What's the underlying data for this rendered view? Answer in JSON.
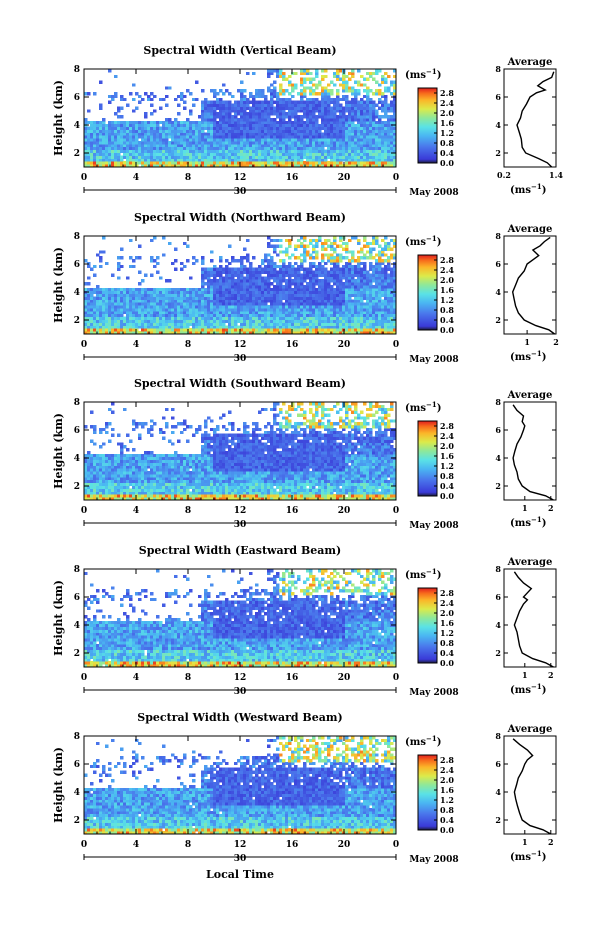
{
  "chart_data": {
    "type": "heatmap",
    "xlabel": "Local Time",
    "x_ticks": [
      "0",
      "4",
      "8",
      "12",
      "16",
      "20",
      "0"
    ],
    "xlim": [
      0,
      24
    ],
    "date_day": "30",
    "date_month": "May 2008",
    "ylabel": "Height (km)",
    "y_ticks": [
      "2",
      "4",
      "6",
      "8"
    ],
    "ylim": [
      1,
      8
    ],
    "colorbar_unit_prefix": "(ms",
    "colorbar_unit_sup": "−1",
    "colorbar_unit_suffix": ")",
    "colorbar_ticks": [
      "0.0",
      "0.4",
      "0.8",
      "1.2",
      "1.6",
      "2.0",
      "2.4",
      "2.8"
    ],
    "colorbar_range": [
      0,
      3.0
    ],
    "avg_title": "Average",
    "avg_ylim": [
      1,
      8
    ],
    "panels": [
      {
        "title": "Spectral Width (Vertical Beam)",
        "beam": "vertical",
        "avg_x_ticks": [
          "0.2",
          "1.4"
        ],
        "avg_xlim": [
          0.2,
          1.4
        ],
        "avg_profile": [
          [
            1.3,
            1.0
          ],
          [
            1.2,
            1.3
          ],
          [
            1.0,
            1.6
          ],
          [
            0.7,
            2.0
          ],
          [
            0.62,
            2.4
          ],
          [
            0.6,
            3.0
          ],
          [
            0.55,
            3.5
          ],
          [
            0.5,
            4.0
          ],
          [
            0.58,
            4.5
          ],
          [
            0.62,
            5.0
          ],
          [
            0.72,
            5.5
          ],
          [
            0.8,
            6.0
          ],
          [
            0.95,
            6.3
          ],
          [
            1.15,
            6.5
          ],
          [
            0.98,
            6.8
          ],
          [
            1.1,
            7.1
          ],
          [
            1.3,
            7.4
          ],
          [
            1.35,
            7.8
          ]
        ]
      },
      {
        "title": "Spectral Width (Northward Beam)",
        "beam": "northward",
        "avg_x_ticks": [
          "1",
          "2"
        ],
        "avg_xlim": [
          0.2,
          2.0
        ],
        "avg_profile": [
          [
            1.95,
            1.0
          ],
          [
            1.75,
            1.3
          ],
          [
            1.3,
            1.6
          ],
          [
            0.9,
            2.0
          ],
          [
            0.7,
            2.5
          ],
          [
            0.6,
            3.0
          ],
          [
            0.55,
            3.5
          ],
          [
            0.5,
            4.0
          ],
          [
            0.6,
            4.5
          ],
          [
            0.7,
            5.0
          ],
          [
            0.9,
            5.5
          ],
          [
            1.0,
            6.0
          ],
          [
            1.2,
            6.3
          ],
          [
            1.4,
            6.6
          ],
          [
            1.2,
            7.0
          ],
          [
            1.45,
            7.3
          ],
          [
            1.6,
            7.6
          ],
          [
            1.8,
            7.9
          ]
        ]
      },
      {
        "title": "Spectral Width (Southward Beam)",
        "beam": "southward",
        "avg_x_ticks": [
          "1",
          "2"
        ],
        "avg_xlim": [
          0.2,
          2.2
        ],
        "avg_profile": [
          [
            2.1,
            1.0
          ],
          [
            1.8,
            1.3
          ],
          [
            1.2,
            1.6
          ],
          [
            0.9,
            2.0
          ],
          [
            0.75,
            2.5
          ],
          [
            0.7,
            3.0
          ],
          [
            0.6,
            3.5
          ],
          [
            0.55,
            4.0
          ],
          [
            0.62,
            4.5
          ],
          [
            0.7,
            5.0
          ],
          [
            0.85,
            5.5
          ],
          [
            0.95,
            6.0
          ],
          [
            1.0,
            6.3
          ],
          [
            0.9,
            6.6
          ],
          [
            0.95,
            7.0
          ],
          [
            0.7,
            7.4
          ],
          [
            0.55,
            7.8
          ]
        ]
      },
      {
        "title": "Spectral Width (Eastward Beam)",
        "beam": "eastward",
        "avg_x_ticks": [
          "1",
          "2"
        ],
        "avg_xlim": [
          0.2,
          2.2
        ],
        "avg_profile": [
          [
            2.1,
            1.0
          ],
          [
            1.8,
            1.3
          ],
          [
            1.3,
            1.6
          ],
          [
            0.9,
            2.0
          ],
          [
            0.8,
            2.5
          ],
          [
            0.75,
            3.0
          ],
          [
            0.7,
            3.5
          ],
          [
            0.6,
            4.0
          ],
          [
            0.7,
            4.5
          ],
          [
            0.8,
            5.0
          ],
          [
            0.95,
            5.5
          ],
          [
            1.1,
            5.8
          ],
          [
            0.95,
            6.0
          ],
          [
            1.1,
            6.3
          ],
          [
            1.25,
            6.6
          ],
          [
            0.95,
            7.0
          ],
          [
            0.75,
            7.4
          ],
          [
            0.6,
            7.8
          ]
        ]
      },
      {
        "title": "Spectral Width (Westward Beam)",
        "beam": "westward",
        "avg_x_ticks": [
          "1",
          "2"
        ],
        "avg_xlim": [
          0.2,
          2.2
        ],
        "avg_profile": [
          [
            2.0,
            1.0
          ],
          [
            1.7,
            1.3
          ],
          [
            1.2,
            1.6
          ],
          [
            0.9,
            2.0
          ],
          [
            0.8,
            2.5
          ],
          [
            0.72,
            3.0
          ],
          [
            0.65,
            3.5
          ],
          [
            0.6,
            4.0
          ],
          [
            0.68,
            4.5
          ],
          [
            0.75,
            5.0
          ],
          [
            0.9,
            5.5
          ],
          [
            1.0,
            6.0
          ],
          [
            1.1,
            6.3
          ],
          [
            1.3,
            6.6
          ],
          [
            1.1,
            7.0
          ],
          [
            0.8,
            7.4
          ],
          [
            0.55,
            7.8
          ]
        ]
      }
    ]
  }
}
